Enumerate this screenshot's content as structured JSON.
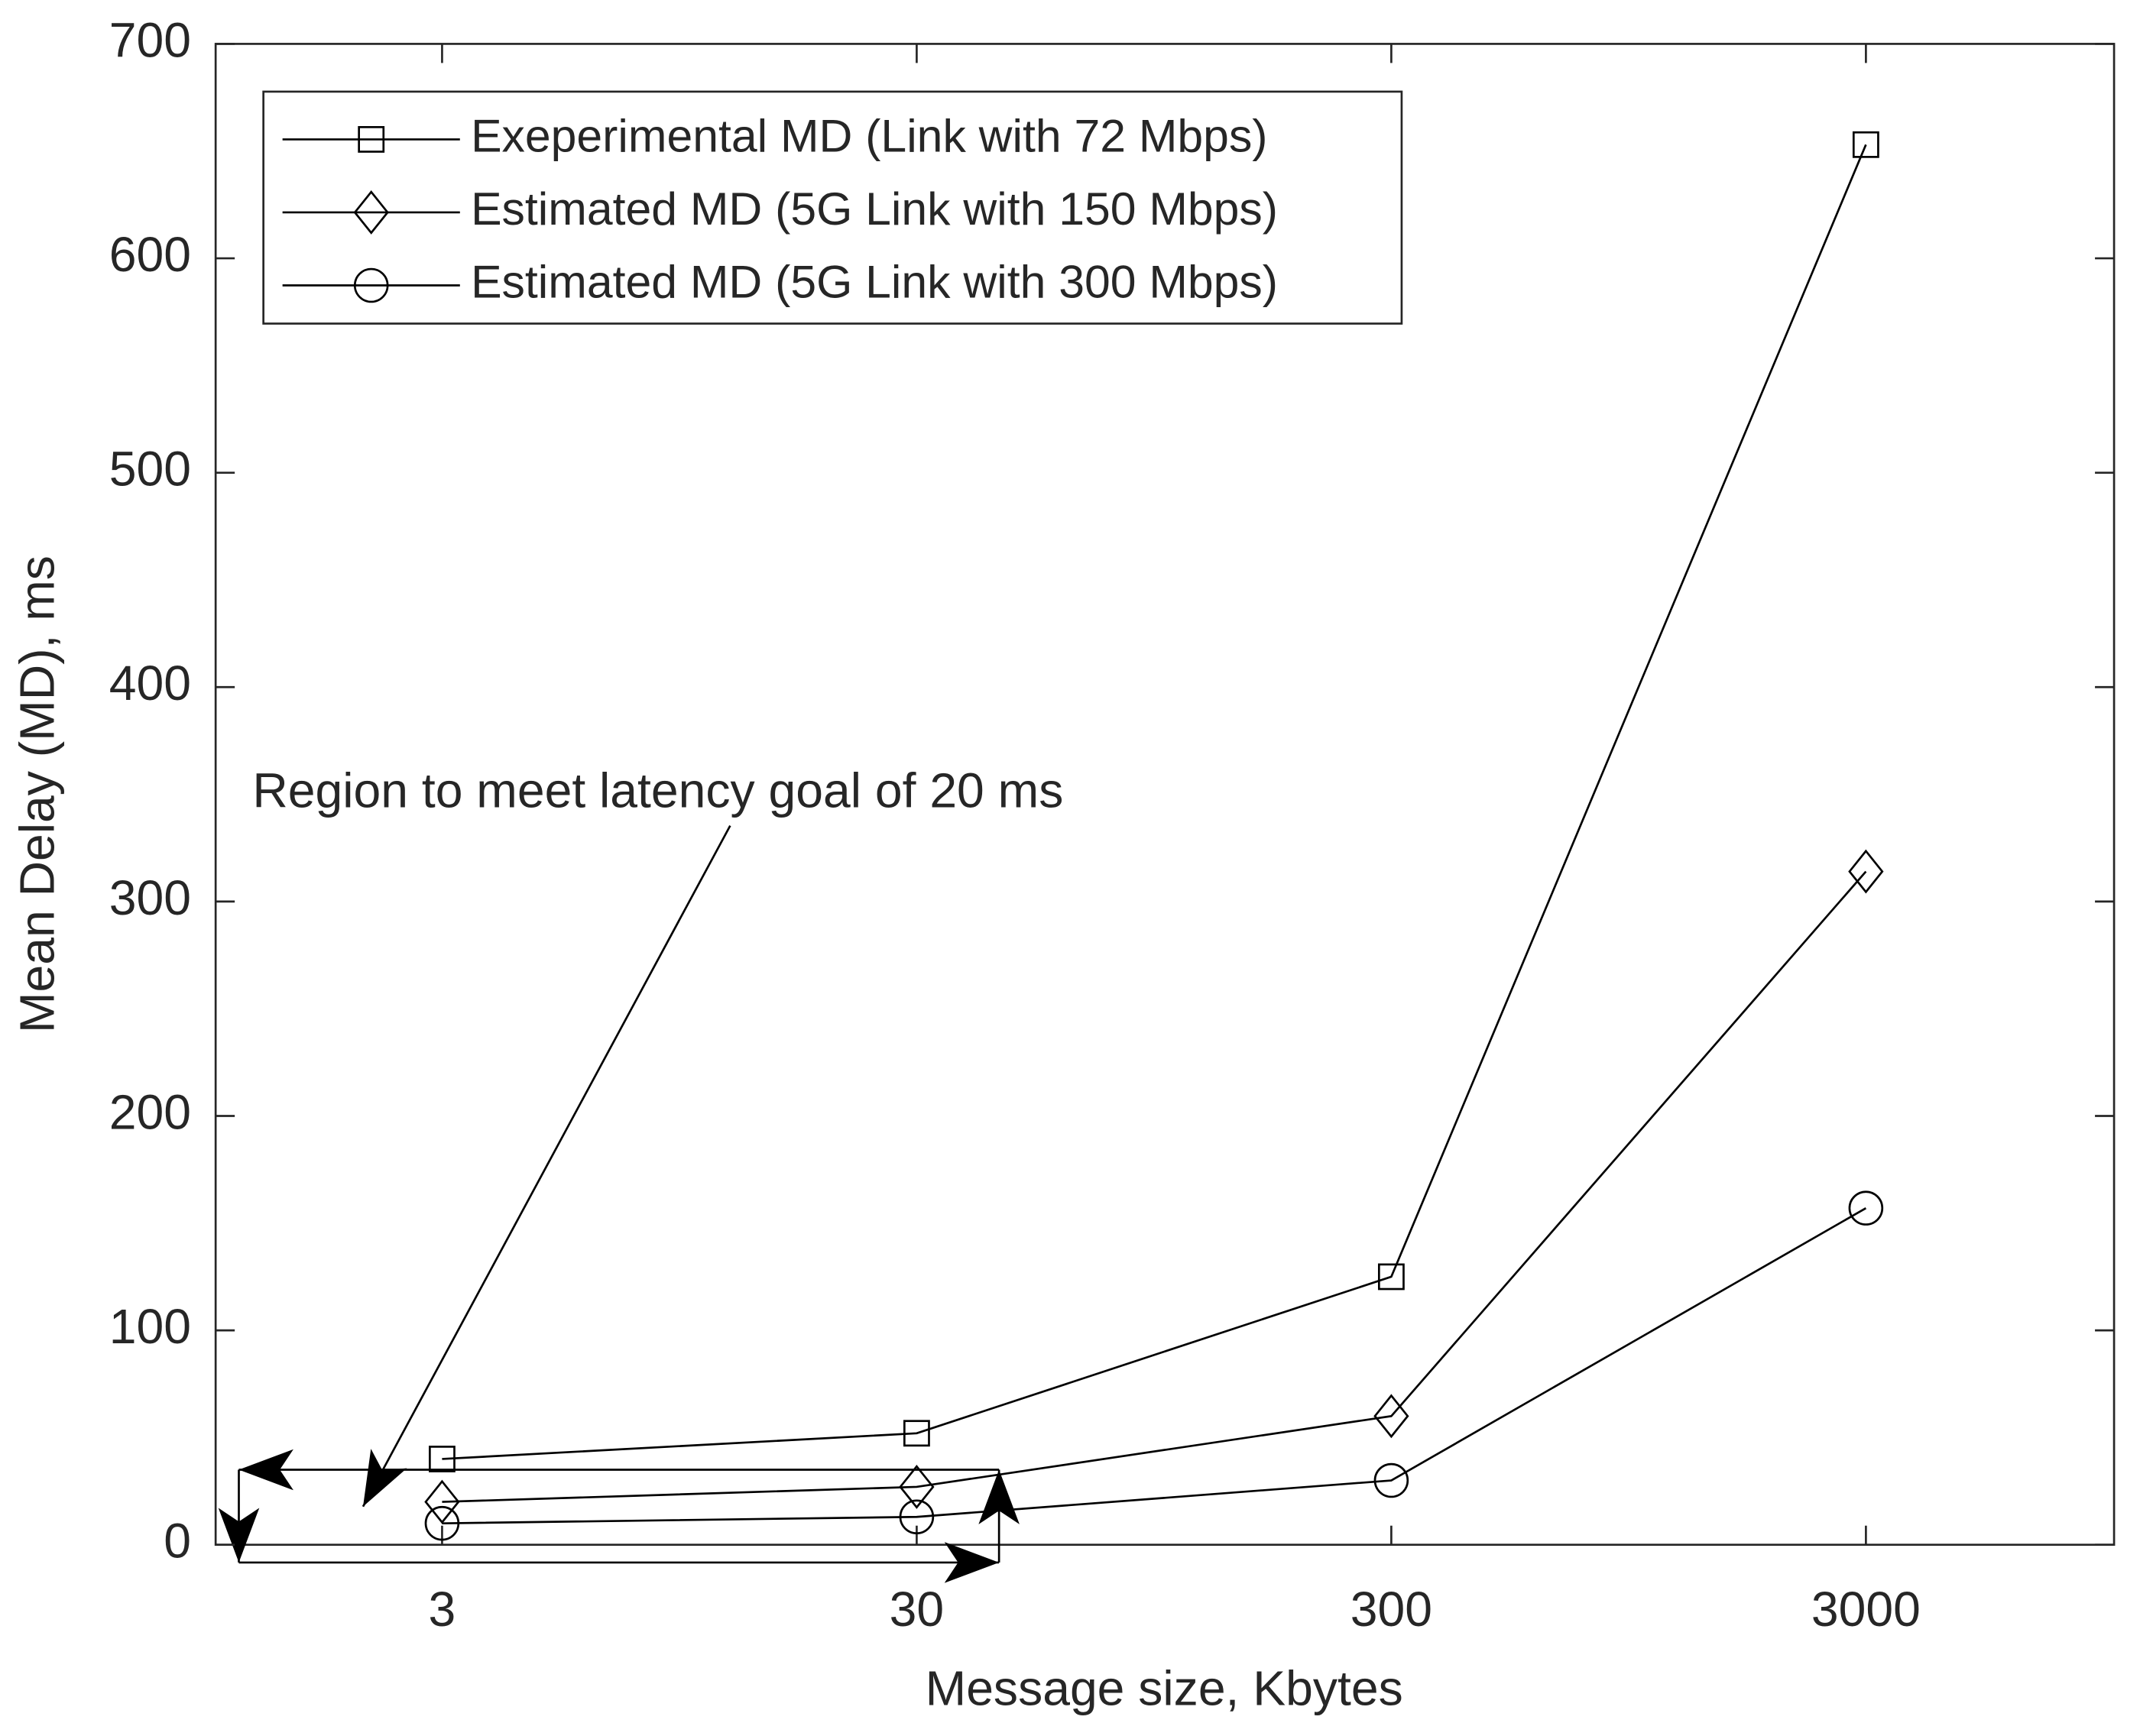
{
  "chart_data": {
    "type": "line",
    "x_label": "Message size, Kbytes",
    "y_label": "Mean Delay (MD), ms",
    "x": [
      3,
      30,
      300,
      3000
    ],
    "xscale": "log",
    "xlim": [
      1,
      10000
    ],
    "xticks": [
      3,
      30,
      300,
      3000
    ],
    "ylim": [
      0,
      700
    ],
    "yticks": [
      0,
      100,
      200,
      300,
      400,
      500,
      600,
      700
    ],
    "grid": false,
    "legend_position": "upper-left",
    "annotation": "Region to meet latency goal of 20 ms",
    "series": [
      {
        "name": "Exeperimental MD (Link with 72 Mbps)",
        "color": "#000000",
        "marker": "square",
        "values": [
          40,
          52,
          125,
          653
        ]
      },
      {
        "name": "Estimated MD (5G Link with 150 Mbps)",
        "color": "#000000",
        "marker": "diamond",
        "values": [
          20,
          27,
          60,
          314
        ]
      },
      {
        "name": "Estimated MD (5G Link with 300 Mbps)",
        "color": "#000000",
        "marker": "circle",
        "values": [
          10,
          13,
          30,
          157
        ]
      }
    ]
  }
}
